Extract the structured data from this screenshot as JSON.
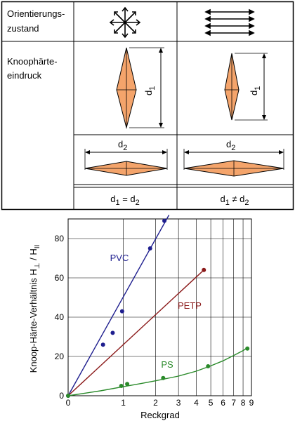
{
  "table": {
    "row1_label_line1": "Orientierungs-",
    "row1_label_line2": "zustand",
    "row2_label_line1": "Knoophärte-",
    "row2_label_line2": "eindruck",
    "d1_symbol": "d",
    "d1_sub": "1",
    "d2_symbol": "d",
    "d2_sub": "2",
    "eq_left": {
      "a": "d",
      "a_sub": "1",
      "op": " = ",
      "b": "d",
      "b_sub": "2"
    },
    "eq_right": {
      "a": "d",
      "a_sub": "1",
      "op": " ≠ ",
      "b": "d",
      "b_sub": "2"
    },
    "colors": {
      "indent_fill": "#f4a46b",
      "border": "#000000"
    }
  },
  "chart_data": {
    "type": "scatter",
    "xscale": "log(1+x)",
    "xlabel": "Reckgrad",
    "ylabel_main": "Knoop-Härte-Verhältnis H",
    "ylabel_sub1": "⊥",
    "ylabel_mid": " / H",
    "ylabel_sub2": "II",
    "xlim": [
      0,
      9
    ],
    "ylim": [
      0,
      90
    ],
    "x_ticks": [
      0,
      1,
      2,
      3,
      4,
      5,
      6,
      7,
      8,
      9
    ],
    "y_ticks": [
      0,
      20,
      40,
      60,
      80
    ],
    "grid": true,
    "series": [
      {
        "name": "PVC",
        "color": "#1f1f8f",
        "points": [
          [
            0,
            0
          ],
          [
            0.55,
            26
          ],
          [
            0.75,
            32
          ],
          [
            0.97,
            43
          ],
          [
            1.8,
            75
          ],
          [
            2.35,
            89
          ]
        ],
        "line": [
          [
            0,
            0
          ],
          [
            2.55,
            92
          ]
        ]
      },
      {
        "name": "PETP",
        "color": "#8b1a1a",
        "points": [
          [
            4.5,
            64
          ]
        ],
        "line": [
          [
            0,
            0
          ],
          [
            4.5,
            64
          ]
        ]
      },
      {
        "name": "PS",
        "color": "#2a8a2a",
        "points": [
          [
            0,
            0
          ],
          [
            0.95,
            5
          ],
          [
            1.1,
            6
          ],
          [
            2.3,
            9
          ],
          [
            4.8,
            15
          ],
          [
            8.5,
            24
          ]
        ],
        "line": [
          [
            0,
            0
          ],
          [
            0.5,
            2.5
          ],
          [
            1,
            4.6
          ],
          [
            1.5,
            6.2
          ],
          [
            2,
            7.6
          ],
          [
            3,
            10
          ],
          [
            4,
            12.5
          ],
          [
            5,
            15.2
          ],
          [
            6,
            17.8
          ],
          [
            7,
            20.5
          ],
          [
            8,
            23
          ],
          [
            8.6,
            24.6
          ]
        ]
      }
    ]
  }
}
